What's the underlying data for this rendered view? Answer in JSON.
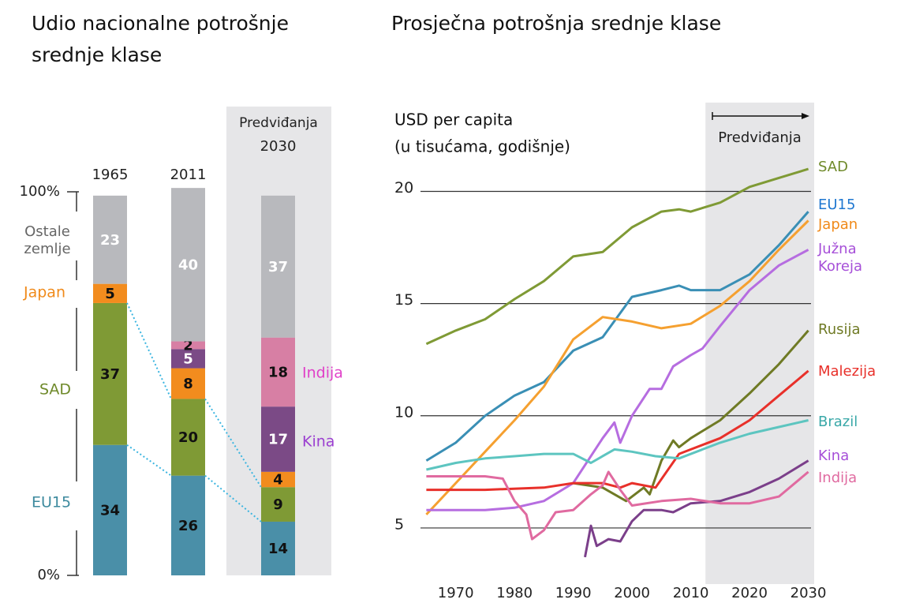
{
  "chart_data": [
    {
      "type": "stacked_bar",
      "title": "Udio nacionalne potrošnje srednje klase",
      "categories": [
        "1965",
        "2011",
        "2030"
      ],
      "annotation": "Predviđanja",
      "ylim": [
        0,
        100
      ],
      "yticks": [
        {
          "value": 0,
          "label": "0%"
        },
        {
          "value": 100,
          "label": "100%"
        }
      ],
      "series": [
        {
          "name": "EU15",
          "color": "#4a8fa8",
          "label_color": "#3d8a9e",
          "value_label_color": "#111",
          "values": [
            34,
            26,
            14
          ]
        },
        {
          "name": "SAD",
          "color": "#7f9a35",
          "label_color": "#6f8a2a",
          "value_label_color": "#111",
          "values": [
            37,
            20,
            9
          ]
        },
        {
          "name": "Japan",
          "color": "#f28c1e",
          "label_color": "#f08a1a",
          "value_label_color": "#111",
          "values": [
            5,
            8,
            4
          ]
        },
        {
          "name": "Kina",
          "color": "#7b4a86",
          "label_color": "#9b3fd0",
          "value_label_color": "#fff",
          "values": [
            null,
            5,
            17
          ]
        },
        {
          "name": "Indija",
          "color": "#d77fa4",
          "label_color": "#e040c8",
          "value_label_color": "#111",
          "values": [
            null,
            2,
            18
          ]
        },
        {
          "name": "Ostale zemlje",
          "color": "#b8b9bd",
          "label_color": "#666",
          "value_label_color": "#fff",
          "values": [
            23,
            40,
            37
          ]
        }
      ]
    },
    {
      "type": "line",
      "title": "Prosječna potrošnja srednje klase",
      "y_label": [
        "USD per capita",
        "(u tisućama, godišnje)"
      ],
      "annotation": "Predviđanja",
      "forecast_start": 2012.5,
      "xlim": [
        1964,
        2031
      ],
      "ylim": [
        2.5,
        23.5
      ],
      "xticks": [
        1970,
        1980,
        1990,
        2000,
        2010,
        2020,
        2030
      ],
      "yticks": [
        5,
        10,
        15,
        20
      ],
      "grid": true,
      "series": [
        {
          "name": "SAD",
          "color": "#7f9a35",
          "label_color": "#6f8a2a",
          "x": [
            1965,
            1970,
            1975,
            1980,
            1985,
            1990,
            1995,
            2000,
            2005,
            2008,
            2010,
            2015,
            2020,
            2025,
            2030
          ],
          "values": [
            13.2,
            13.8,
            14.3,
            15.2,
            16,
            17.1,
            17.3,
            18.4,
            19.1,
            19.2,
            19.1,
            19.5,
            20.2,
            20.6,
            21
          ]
        },
        {
          "name": "EU15",
          "color": "#3a8fb5",
          "label_color": "#1f77d0",
          "x": [
            1965,
            1970,
            1975,
            1980,
            1985,
            1990,
            1995,
            2000,
            2005,
            2008,
            2010,
            2015,
            2020,
            2025,
            2030
          ],
          "values": [
            8,
            8.8,
            10,
            10.9,
            11.5,
            12.9,
            13.5,
            15.3,
            15.6,
            15.8,
            15.6,
            15.6,
            16.3,
            17.6,
            19.1
          ]
        },
        {
          "name": "Japan",
          "color": "#f5a030",
          "label_color": "#f08a1a",
          "x": [
            1965,
            1970,
            1975,
            1980,
            1985,
            1990,
            1995,
            2000,
            2005,
            2010,
            2015,
            2020,
            2025,
            2030
          ],
          "values": [
            5.6,
            7,
            8.4,
            9.8,
            11.3,
            13.4,
            14.4,
            14.2,
            13.9,
            14.1,
            14.9,
            16,
            17.4,
            18.7
          ]
        },
        {
          "name": "Južna Koreja",
          "color": "#b66de0",
          "label_color": "#a64fd8",
          "x": [
            1965,
            1975,
            1980,
            1985,
            1990,
            1995,
            1997,
            1998,
            2000,
            2003,
            2005,
            2007,
            2010,
            2012,
            2015,
            2020,
            2025,
            2030
          ],
          "values": [
            5.8,
            5.8,
            5.9,
            6.2,
            7,
            9,
            9.7,
            8.8,
            10,
            11.2,
            11.2,
            12.2,
            12.7,
            13,
            14,
            15.6,
            16.7,
            17.4
          ]
        },
        {
          "name": "Rusija",
          "color": "#6f7a25",
          "label_color": "#6f7a25",
          "x": [
            1990,
            1995,
            1999,
            2002,
            2003,
            2005,
            2007,
            2008,
            2010,
            2015,
            2020,
            2025,
            2030
          ],
          "values": [
            7,
            6.8,
            6.2,
            6.8,
            6.5,
            8,
            8.9,
            8.6,
            9,
            9.8,
            11,
            12.3,
            13.8
          ]
        },
        {
          "name": "Malezija",
          "color": "#e8302a",
          "label_color": "#e8302a",
          "x": [
            1965,
            1975,
            1985,
            1990,
            1995,
            1998,
            2000,
            2004,
            2008,
            2010,
            2015,
            2020,
            2025,
            2030
          ],
          "values": [
            6.7,
            6.7,
            6.8,
            7,
            7,
            6.8,
            7,
            6.8,
            8.3,
            8.5,
            9,
            9.8,
            10.9,
            12
          ]
        },
        {
          "name": "Brazil",
          "color": "#5dc5c0",
          "label_color": "#3aa8a8",
          "x": [
            1965,
            1970,
            1975,
            1980,
            1985,
            1990,
            1993,
            1997,
            2000,
            2004,
            2008,
            2012,
            2015,
            2020,
            2025,
            2030
          ],
          "values": [
            7.6,
            7.9,
            8.1,
            8.2,
            8.3,
            8.3,
            7.9,
            8.5,
            8.4,
            8.2,
            8.1,
            8.5,
            8.8,
            9.2,
            9.5,
            9.8
          ]
        },
        {
          "name": "Kina",
          "color": "#7b3f8a",
          "label_color": "#a64fd8",
          "x": [
            1992,
            1993,
            1994,
            1996,
            1998,
            2000,
            2002,
            2005,
            2007,
            2010,
            2015,
            2020,
            2025,
            2030
          ],
          "values": [
            3.7,
            5.1,
            4.2,
            4.5,
            4.4,
            5.3,
            5.8,
            5.8,
            5.7,
            6.1,
            6.2,
            6.6,
            7.2,
            8
          ]
        },
        {
          "name": "Indija",
          "color": "#e06aa0",
          "label_color": "#e06aa0",
          "x": [
            1965,
            1975,
            1978,
            1980,
            1982,
            1983,
            1985,
            1987,
            1990,
            1993,
            1995,
            1996,
            1998,
            2000,
            2005,
            2010,
            2015,
            2020,
            2025,
            2030
          ],
          "values": [
            7.3,
            7.3,
            7.2,
            6.2,
            5.6,
            4.5,
            4.9,
            5.7,
            5.8,
            6.5,
            6.9,
            7.5,
            6.7,
            6,
            6.2,
            6.3,
            6.1,
            6.1,
            6.4,
            7.5
          ]
        }
      ]
    }
  ]
}
